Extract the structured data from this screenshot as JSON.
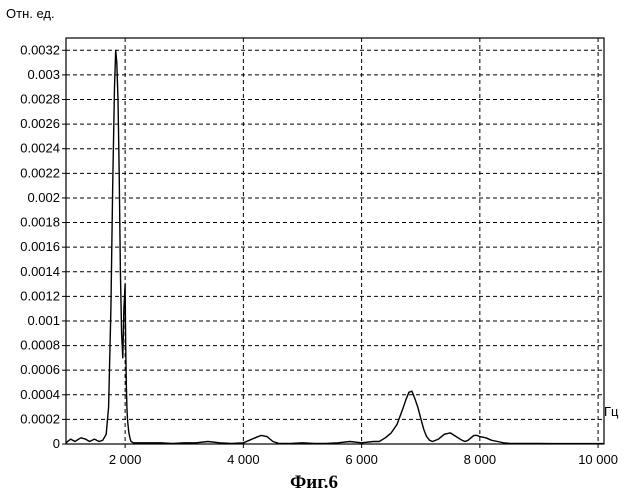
{
  "chart_data": {
    "type": "line",
    "title": "",
    "ylabel": "Отн. ед.",
    "xlabel": "Гц",
    "caption": "Фиг.6",
    "xlim": [
      1000,
      10100
    ],
    "ylim": [
      0,
      0.0033
    ],
    "grid": true,
    "xticks": [
      2000,
      4000,
      6000,
      8000,
      10000
    ],
    "xtick_labels": [
      "2 000",
      "4 000",
      "6 000",
      "8 000",
      "10 000"
    ],
    "yticks": [
      0,
      0.0002,
      0.0004,
      0.0006,
      0.0008,
      0.001,
      0.0012,
      0.0014,
      0.0016,
      0.0018,
      0.002,
      0.0022,
      0.0024,
      0.0026,
      0.0028,
      0.003,
      0.0032
    ],
    "ytick_labels": [
      "0",
      "0.0002",
      "0.0004",
      "0.0006",
      "0.0008",
      "0.001",
      "0.0012",
      "0.0014",
      "0.0016",
      "0.0018",
      "0.002",
      "0.0022",
      "0.0024",
      "0.0026",
      "0.0028",
      "0.003",
      "0.0032"
    ],
    "series": [
      {
        "color": "#000000",
        "x": [
          1000,
          1080,
          1150,
          1250,
          1330,
          1400,
          1480,
          1560,
          1620,
          1680,
          1720,
          1760,
          1790,
          1820,
          1840,
          1860,
          1880,
          1900,
          1920,
          1940,
          1960,
          1980,
          2000,
          2010,
          2020,
          2030,
          2040,
          2060,
          2080,
          2100,
          2140,
          2200,
          2400,
          2600,
          2800,
          3000,
          3200,
          3400,
          3600,
          3800,
          4000,
          4100,
          4200,
          4300,
          4400,
          4500,
          4600,
          4800,
          5000,
          5200,
          5400,
          5600,
          5800,
          6000,
          6200,
          6300,
          6400,
          6500,
          6600,
          6700,
          6750,
          6800,
          6850,
          6900,
          6950,
          7000,
          7050,
          7100,
          7150,
          7200,
          7300,
          7400,
          7500,
          7600,
          7700,
          7750,
          7800,
          7850,
          7900,
          7950,
          8000,
          8100,
          8200,
          8300,
          8400,
          8500,
          8600,
          8800,
          9000,
          9200,
          9400,
          9600,
          9800,
          10000,
          10100
        ],
        "y": [
          1e-05,
          4e-05,
          2e-05,
          5e-05,
          4e-05,
          2e-05,
          4e-05,
          2e-05,
          3e-05,
          8e-05,
          0.0003,
          0.0011,
          0.0021,
          0.0029,
          0.0032,
          0.0031,
          0.0028,
          0.0022,
          0.0014,
          0.0009,
          0.0007,
          0.0011,
          0.0013,
          0.0008,
          0.0005,
          0.0003,
          0.0002,
          0.0001,
          5e-05,
          2e-05,
          1e-05,
          1e-05,
          1e-05,
          1e-05,
          5e-06,
          1e-05,
          1e-05,
          2e-05,
          1e-05,
          5e-06,
          1e-05,
          3e-05,
          5e-05,
          7e-05,
          6e-05,
          2e-05,
          5e-06,
          5e-06,
          1e-05,
          5e-06,
          5e-06,
          1e-05,
          2e-05,
          1e-05,
          2e-05,
          2e-05,
          5e-05,
          9e-05,
          0.00016,
          0.00029,
          0.00036,
          0.00042,
          0.00043,
          0.00037,
          0.0003,
          0.00021,
          0.00012,
          6e-05,
          3e-05,
          2e-05,
          4e-05,
          8e-05,
          9e-05,
          6e-05,
          3e-05,
          2e-05,
          3e-05,
          5e-05,
          7e-05,
          7e-05,
          6e-05,
          5e-05,
          3e-05,
          2e-05,
          1e-05,
          5e-06,
          5e-06,
          5e-06,
          5e-06,
          3e-06,
          3e-06,
          3e-06,
          3e-06,
          3e-06,
          3e-06
        ]
      }
    ]
  }
}
